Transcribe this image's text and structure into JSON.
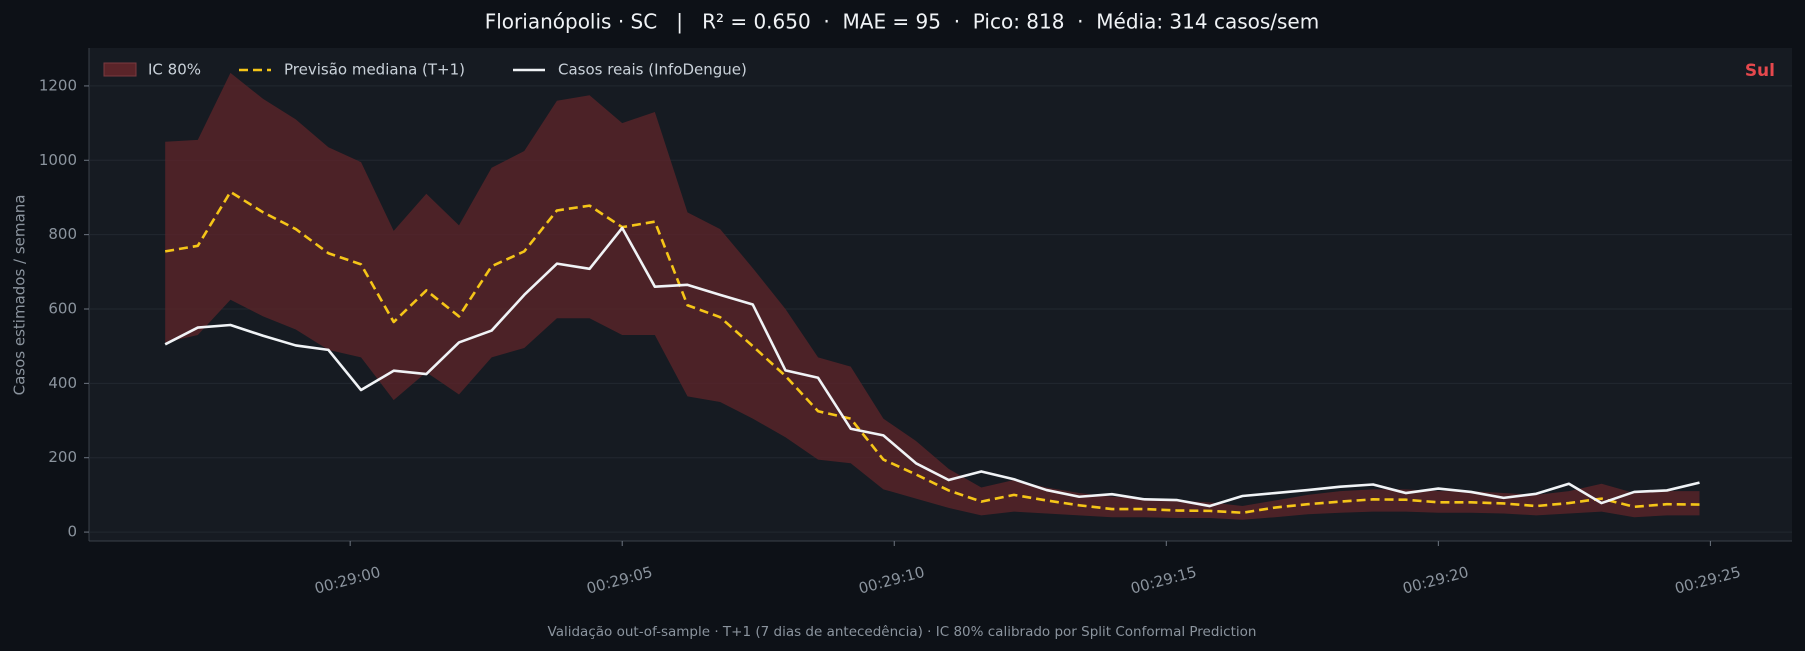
{
  "chart_data": {
    "type": "line",
    "title": "Florianópolis · SC   |   R² = 0.650  ·  MAE = 95  ·  Pico: 818  ·  Média: 314 casos/sem",
    "ylabel": "Casos estimados / semana",
    "footer": "Validação out-of-sample · T+1 (7 dias de antecedência) · IC 80% calibrado por Split Conformal Prediction",
    "annotation": {
      "text": "Sul",
      "color": "#e5484d"
    },
    "x": [
      1736.6,
      1737.2,
      1737.8,
      1738.4,
      1739.0,
      1739.6,
      1740.2,
      1740.8,
      1741.4,
      1742.0,
      1742.6,
      1743.2,
      1743.8,
      1744.4,
      1745.0,
      1745.6,
      1746.2,
      1746.8,
      1747.4,
      1748.0,
      1748.6,
      1749.2,
      1749.8,
      1750.4,
      1751.0,
      1751.6,
      1752.2,
      1752.8,
      1753.4,
      1754.0,
      1754.6,
      1755.2,
      1755.8,
      1756.4,
      1757.0,
      1757.6,
      1758.2,
      1758.8,
      1759.4,
      1760.0,
      1760.6,
      1761.2,
      1761.8,
      1762.4,
      1763.0,
      1763.6,
      1764.2,
      1764.8
    ],
    "band": {
      "name": "IC 80%",
      "color": "#5a2429",
      "upper": [
        1050,
        1055,
        1235,
        1165,
        1110,
        1035,
        995,
        810,
        910,
        825,
        980,
        1025,
        1160,
        1175,
        1100,
        1130,
        860,
        815,
        710,
        600,
        470,
        445,
        305,
        245,
        170,
        120,
        140,
        120,
        105,
        95,
        90,
        85,
        80,
        70,
        85,
        100,
        110,
        115,
        115,
        110,
        110,
        105,
        100,
        110,
        130,
        105,
        110,
        110
      ],
      "lower": [
        510,
        530,
        625,
        580,
        545,
        490,
        470,
        355,
        430,
        370,
        470,
        495,
        575,
        575,
        530,
        530,
        365,
        350,
        305,
        255,
        195,
        185,
        115,
        90,
        65,
        45,
        55,
        50,
        45,
        40,
        40,
        38,
        38,
        33,
        40,
        48,
        52,
        55,
        55,
        52,
        52,
        50,
        45,
        50,
        55,
        40,
        45,
        45
      ]
    },
    "series": [
      {
        "name": "Previsão mediana (T+1)",
        "color": "#f5c518",
        "dashed": true,
        "values": [
          755,
          770,
          915,
          860,
          815,
          750,
          720,
          565,
          650,
          580,
          715,
          755,
          865,
          878,
          820,
          835,
          610,
          578,
          500,
          420,
          325,
          305,
          195,
          155,
          112,
          82,
          100,
          85,
          72,
          62,
          62,
          58,
          57,
          52,
          66,
          75,
          82,
          88,
          87,
          80,
          80,
          77,
          70,
          78,
          90,
          68,
          75,
          74
        ]
      },
      {
        "name": "Casos reais (InfoDengue)",
        "color": "#f0f3f6",
        "dashed": false,
        "values": [
          505,
          550,
          557,
          528,
          502,
          490,
          382,
          434,
          425,
          510,
          542,
          638,
          722,
          708,
          818,
          660,
          665,
          638,
          612,
          435,
          415,
          278,
          260,
          185,
          140,
          163,
          142,
          113,
          95,
          102,
          88,
          86,
          70,
          97,
          105,
          113,
          122,
          128,
          105,
          117,
          108,
          92,
          103,
          130,
          78,
          108,
          112,
          133
        ]
      }
    ],
    "xlim": [
      1735.2,
      1766.5
    ],
    "ylim": [
      -24,
      1302
    ],
    "xticks": [
      {
        "value": 1740,
        "label": "00:29:00"
      },
      {
        "value": 1745,
        "label": "00:29:05"
      },
      {
        "value": 1750,
        "label": "00:29:10"
      },
      {
        "value": 1755,
        "label": "00:29:15"
      },
      {
        "value": 1760,
        "label": "00:29:20"
      },
      {
        "value": 1765,
        "label": "00:29:25"
      }
    ],
    "yticks": [
      0,
      200,
      400,
      600,
      800,
      1000,
      1200
    ],
    "grid": true,
    "legend": "upper left"
  }
}
